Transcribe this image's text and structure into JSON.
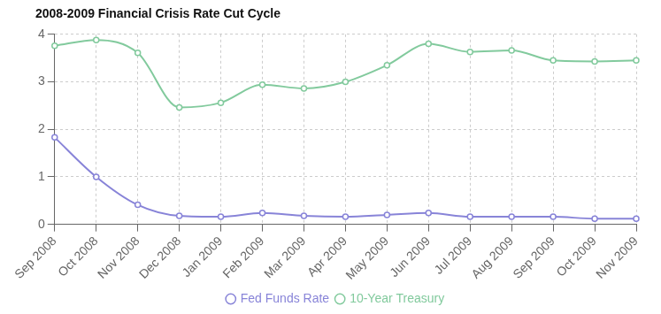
{
  "chart_data": {
    "type": "line",
    "title": "2008-2009 Financial Crisis Rate Cut Cycle",
    "categories": [
      "Sep 2008",
      "Oct 2008",
      "Nov 2008",
      "Dec 2008",
      "Jan 2009",
      "Feb 2009",
      "Mar 2009",
      "Apr 2009",
      "May 2009",
      "Jun 2009",
      "Jul 2009",
      "Aug 2009",
      "Sep 2009",
      "Oct 2009",
      "Nov 2009"
    ],
    "series": [
      {
        "name": "Fed Funds Rate",
        "color": "#8884d8",
        "values": [
          1.83,
          1.0,
          0.41,
          0.18,
          0.16,
          0.24,
          0.18,
          0.16,
          0.2,
          0.24,
          0.16,
          0.16,
          0.16,
          0.12,
          0.12
        ]
      },
      {
        "name": "10-Year Treasury",
        "color": "#82ca9d",
        "values": [
          3.76,
          3.88,
          3.61,
          2.46,
          2.56,
          2.94,
          2.86,
          3.0,
          3.35,
          3.8,
          3.63,
          3.66,
          3.45,
          3.43,
          3.45
        ]
      }
    ],
    "marker": "circle",
    "ylim": [
      0,
      4
    ],
    "yticks": [
      0,
      1,
      2,
      3,
      4
    ],
    "grid": true,
    "legend": "bottom"
  }
}
